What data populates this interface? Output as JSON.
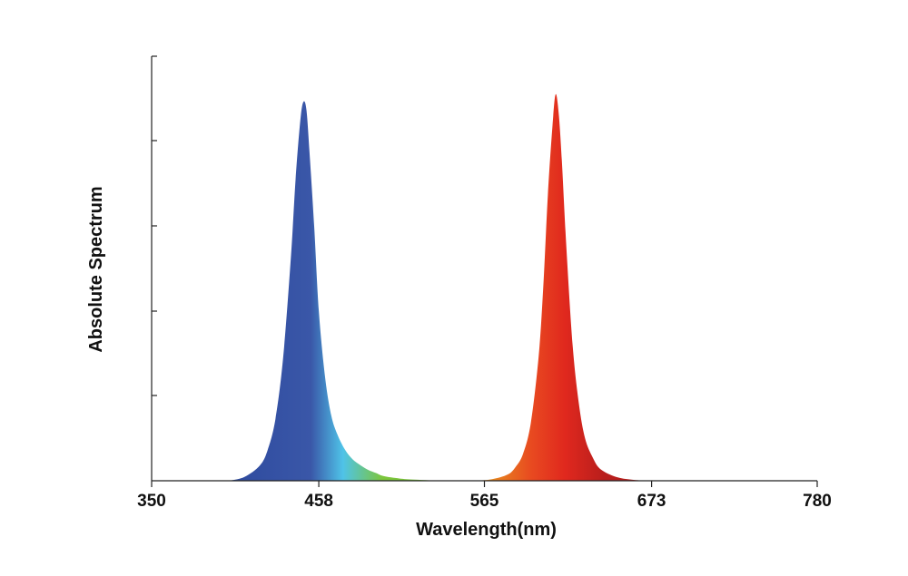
{
  "chart_data": {
    "type": "area",
    "title": "",
    "xlabel": "Wavelength(nm)",
    "ylabel": "Absolute Spectrum",
    "xlim": [
      350,
      780
    ],
    "ylim": [
      0,
      1
    ],
    "x_ticks": [
      "350",
      "458",
      "565",
      "673",
      "780"
    ],
    "y_ticks_labeled": false,
    "grid": false,
    "legend": "none",
    "series": [
      {
        "x": [
          400,
          410,
          420,
          425,
          430,
          435,
          440,
          443,
          446,
          448,
          450,
          452,
          455,
          458,
          462,
          466,
          470,
          475,
          480,
          485,
          490,
          495,
          500,
          510,
          520,
          540,
          560
        ],
        "y": [
          0.0,
          0.01,
          0.04,
          0.08,
          0.16,
          0.32,
          0.58,
          0.78,
          0.93,
          0.98,
          0.96,
          0.85,
          0.66,
          0.44,
          0.27,
          0.17,
          0.12,
          0.08,
          0.055,
          0.04,
          0.028,
          0.02,
          0.012,
          0.006,
          0.003,
          0.0,
          0.0
        ],
        "colors": [
          "#2e4a9e",
          "#3a57a8",
          "#4fc3e8",
          "#7cc63c"
        ]
      },
      {
        "x": [
          560,
          570,
          580,
          585,
          590,
          595,
          600,
          603,
          606,
          609,
          611,
          613,
          615,
          618,
          622,
          626,
          630,
          635,
          640,
          650,
          660,
          670
        ],
        "y": [
          0.0,
          0.004,
          0.016,
          0.035,
          0.07,
          0.15,
          0.32,
          0.5,
          0.74,
          0.92,
          1.0,
          0.95,
          0.83,
          0.6,
          0.35,
          0.2,
          0.11,
          0.06,
          0.03,
          0.01,
          0.003,
          0.0
        ],
        "colors": [
          "#e8a020",
          "#e84a20",
          "#e0281e",
          "#b81e1c"
        ]
      }
    ]
  }
}
